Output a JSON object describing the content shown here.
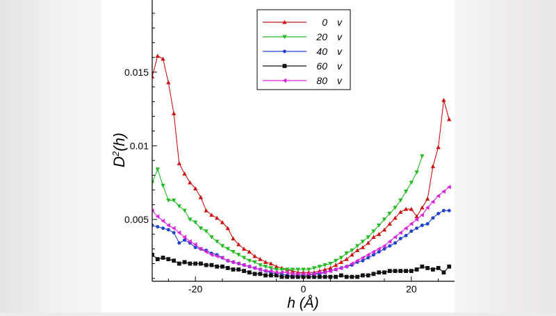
{
  "chart_data": {
    "type": "line",
    "xlabel": "h (Å)",
    "ylabel_main": "D",
    "ylabel_sup": "2",
    "ylabel_rest": "(h)",
    "xlim": [
      -28,
      28
    ],
    "ylim": [
      0.0008,
      0.0199
    ],
    "xticks": [
      -20,
      0,
      20
    ],
    "xtick_labels": [
      "-20",
      "0",
      "20"
    ],
    "yticks": [
      0.005,
      0.01,
      0.015
    ],
    "ytick_labels": [
      "0.005",
      "0.01",
      "0.015"
    ],
    "legend_position": "top-center",
    "grid": false,
    "series": [
      {
        "name": "0 v",
        "color": "#cc1111",
        "marker": "triangle-up",
        "points": [
          [
            -28,
            0.0147
          ],
          [
            -27,
            0.0161
          ],
          [
            -26,
            0.0159
          ],
          [
            -25,
            0.0143
          ],
          [
            -24,
            0.0122
          ],
          [
            -23,
            0.0088
          ],
          [
            -22,
            0.0081
          ],
          [
            -21,
            0.0075
          ],
          [
            -20,
            0.0071
          ],
          [
            -19,
            0.0065
          ],
          [
            -18,
            0.0056
          ],
          [
            -17,
            0.0053
          ],
          [
            -16,
            0.0051
          ],
          [
            -15,
            0.0048
          ],
          [
            -14,
            0.0044
          ],
          [
            -13,
            0.0037
          ],
          [
            -12,
            0.0033
          ],
          [
            -11,
            0.003
          ],
          [
            -10,
            0.0028
          ],
          [
            -9,
            0.0025
          ],
          [
            -8,
            0.0023
          ],
          [
            -7,
            0.0021
          ],
          [
            -6,
            0.002
          ],
          [
            -5,
            0.0018
          ],
          [
            -4,
            0.0017
          ],
          [
            -3,
            0.0016
          ],
          [
            -2,
            0.0015
          ],
          [
            -1,
            0.0014
          ],
          [
            0,
            0.0014
          ],
          [
            1,
            0.0014
          ],
          [
            2,
            0.0014
          ],
          [
            3,
            0.0015
          ],
          [
            4,
            0.0016
          ],
          [
            5,
            0.0017
          ],
          [
            6,
            0.0019
          ],
          [
            7,
            0.0021
          ],
          [
            8,
            0.0023
          ],
          [
            9,
            0.0026
          ],
          [
            10,
            0.0029
          ],
          [
            11,
            0.0031
          ],
          [
            12,
            0.0034
          ],
          [
            13,
            0.0038
          ],
          [
            14,
            0.004
          ],
          [
            15,
            0.0043
          ],
          [
            16,
            0.0047
          ],
          [
            17,
            0.0051
          ],
          [
            18,
            0.0055
          ],
          [
            19,
            0.0057
          ],
          [
            20,
            0.0057
          ],
          [
            21,
            0.0052
          ],
          [
            22,
            0.0058
          ],
          [
            23,
            0.0064
          ],
          [
            24,
            0.0086
          ],
          [
            25,
            0.0099
          ],
          [
            26,
            0.0131
          ],
          [
            27,
            0.0118
          ]
        ]
      },
      {
        "name": "20 v",
        "color": "#22bb22",
        "marker": "triangle-down",
        "points": [
          [
            -28,
            0.0075
          ],
          [
            -27,
            0.0084
          ],
          [
            -26,
            0.0073
          ],
          [
            -25,
            0.0063
          ],
          [
            -24,
            0.0063
          ],
          [
            -23,
            0.0059
          ],
          [
            -22,
            0.0056
          ],
          [
            -21,
            0.005
          ],
          [
            -20,
            0.0048
          ],
          [
            -19,
            0.0044
          ],
          [
            -18,
            0.0042
          ],
          [
            -17,
            0.0038
          ],
          [
            -16,
            0.0035
          ],
          [
            -15,
            0.0032
          ],
          [
            -14,
            0.003
          ],
          [
            -13,
            0.0028
          ],
          [
            -12,
            0.0026
          ],
          [
            -11,
            0.0024
          ],
          [
            -10,
            0.0022
          ],
          [
            -9,
            0.0021
          ],
          [
            -8,
            0.0019
          ],
          [
            -7,
            0.0018
          ],
          [
            -6,
            0.0017
          ],
          [
            -5,
            0.0016
          ],
          [
            -4,
            0.0016
          ],
          [
            -3,
            0.0016
          ],
          [
            -2,
            0.0016
          ],
          [
            -1,
            0.0016
          ],
          [
            0,
            0.0016
          ],
          [
            1,
            0.0016
          ],
          [
            2,
            0.0017
          ],
          [
            3,
            0.0018
          ],
          [
            4,
            0.0019
          ],
          [
            5,
            0.002
          ],
          [
            6,
            0.0022
          ],
          [
            7,
            0.0024
          ],
          [
            8,
            0.0027
          ],
          [
            9,
            0.0029
          ],
          [
            10,
            0.0032
          ],
          [
            11,
            0.0035
          ],
          [
            12,
            0.0038
          ],
          [
            13,
            0.0042
          ],
          [
            14,
            0.0046
          ],
          [
            15,
            0.005
          ],
          [
            16,
            0.0054
          ],
          [
            17,
            0.0058
          ],
          [
            18,
            0.0063
          ],
          [
            19,
            0.0069
          ],
          [
            20,
            0.0075
          ],
          [
            21,
            0.0082
          ],
          [
            22,
            0.0093
          ]
        ]
      },
      {
        "name": "40 v",
        "color": "#2244cc",
        "marker": "circle",
        "points": [
          [
            -28,
            0.0046
          ],
          [
            -27,
            0.0045
          ],
          [
            -26,
            0.0044
          ],
          [
            -25,
            0.0043
          ],
          [
            -24,
            0.0041
          ],
          [
            -23,
            0.0034
          ],
          [
            -22,
            0.0036
          ],
          [
            -21,
            0.0034
          ],
          [
            -20,
            0.0031
          ],
          [
            -19,
            0.003
          ],
          [
            -18,
            0.0029
          ],
          [
            -17,
            0.0027
          ],
          [
            -16,
            0.0026
          ],
          [
            -15,
            0.0024
          ],
          [
            -14,
            0.0022
          ],
          [
            -13,
            0.0021
          ],
          [
            -12,
            0.002
          ],
          [
            -11,
            0.0019
          ],
          [
            -10,
            0.0018
          ],
          [
            -9,
            0.0017
          ],
          [
            -8,
            0.0016
          ],
          [
            -7,
            0.0015
          ],
          [
            -6,
            0.0014
          ],
          [
            -5,
            0.0013
          ],
          [
            -4,
            0.0013
          ],
          [
            -3,
            0.0012
          ],
          [
            -2,
            0.0012
          ],
          [
            -1,
            0.0012
          ],
          [
            0,
            0.0012
          ],
          [
            1,
            0.0012
          ],
          [
            2,
            0.0013
          ],
          [
            3,
            0.0013
          ],
          [
            4,
            0.0014
          ],
          [
            5,
            0.0015
          ],
          [
            6,
            0.0016
          ],
          [
            7,
            0.0017
          ],
          [
            8,
            0.0018
          ],
          [
            9,
            0.0019
          ],
          [
            10,
            0.0021
          ],
          [
            11,
            0.0022
          ],
          [
            12,
            0.0024
          ],
          [
            13,
            0.0026
          ],
          [
            14,
            0.0028
          ],
          [
            15,
            0.003
          ],
          [
            16,
            0.0032
          ],
          [
            17,
            0.0034
          ],
          [
            18,
            0.0037
          ],
          [
            19,
            0.0039
          ],
          [
            20,
            0.0042
          ],
          [
            21,
            0.0044
          ],
          [
            22,
            0.0046
          ],
          [
            23,
            0.0047
          ],
          [
            24,
            0.0051
          ],
          [
            25,
            0.0054
          ],
          [
            26,
            0.0056
          ],
          [
            27,
            0.0056
          ]
        ]
      },
      {
        "name": "60 v",
        "color": "#111111",
        "marker": "square",
        "points": [
          [
            -28,
            0.0026
          ],
          [
            -27,
            0.0023
          ],
          [
            -26,
            0.0024
          ],
          [
            -25,
            0.0023
          ],
          [
            -24,
            0.0022
          ],
          [
            -23,
            0.002
          ],
          [
            -22,
            0.0021
          ],
          [
            -21,
            0.002
          ],
          [
            -20,
            0.002
          ],
          [
            -19,
            0.002
          ],
          [
            -18,
            0.0019
          ],
          [
            -17,
            0.0019
          ],
          [
            -16,
            0.0018
          ],
          [
            -15,
            0.0018
          ],
          [
            -14,
            0.0017
          ],
          [
            -13,
            0.0016
          ],
          [
            -12,
            0.0016
          ],
          [
            -11,
            0.0015
          ],
          [
            -10,
            0.0014
          ],
          [
            -9,
            0.0013
          ],
          [
            -8,
            0.0013
          ],
          [
            -7,
            0.0012
          ],
          [
            -6,
            0.0012
          ],
          [
            -5,
            0.0012
          ],
          [
            -4,
            0.0011
          ],
          [
            -3,
            0.0011
          ],
          [
            -2,
            0.0011
          ],
          [
            -1,
            0.0011
          ],
          [
            0,
            0.0011
          ],
          [
            1,
            0.0011
          ],
          [
            2,
            0.0011
          ],
          [
            3,
            0.0011
          ],
          [
            4,
            0.0011
          ],
          [
            5,
            0.0011
          ],
          [
            6,
            0.0011
          ],
          [
            7,
            0.0012
          ],
          [
            8,
            0.0011
          ],
          [
            9,
            0.0011
          ],
          [
            10,
            0.0011
          ],
          [
            11,
            0.0012
          ],
          [
            12,
            0.0012
          ],
          [
            13,
            0.0013
          ],
          [
            14,
            0.0014
          ],
          [
            15,
            0.0014
          ],
          [
            16,
            0.0015
          ],
          [
            17,
            0.0015
          ],
          [
            18,
            0.0015
          ],
          [
            19,
            0.0015
          ],
          [
            20,
            0.0015
          ],
          [
            21,
            0.0016
          ],
          [
            22,
            0.0018
          ],
          [
            23,
            0.0017
          ],
          [
            24,
            0.0016
          ],
          [
            25,
            0.0017
          ],
          [
            26,
            0.0014
          ],
          [
            27,
            0.0018
          ]
        ]
      },
      {
        "name": "80 v",
        "color": "#dd22dd",
        "marker": "triangle-left",
        "points": [
          [
            -28,
            0.0056
          ],
          [
            -27,
            0.0052
          ],
          [
            -26,
            0.0049
          ],
          [
            -25,
            0.0046
          ],
          [
            -24,
            0.0044
          ],
          [
            -23,
            0.0041
          ],
          [
            -22,
            0.0038
          ],
          [
            -21,
            0.0035
          ],
          [
            -20,
            0.0033
          ],
          [
            -19,
            0.003
          ],
          [
            -18,
            0.0028
          ],
          [
            -17,
            0.0026
          ],
          [
            -16,
            0.0025
          ],
          [
            -15,
            0.0024
          ],
          [
            -14,
            0.0022
          ],
          [
            -13,
            0.0021
          ],
          [
            -12,
            0.002
          ],
          [
            -11,
            0.0019
          ],
          [
            -10,
            0.0018
          ],
          [
            -9,
            0.0017
          ],
          [
            -8,
            0.0016
          ],
          [
            -7,
            0.0015
          ],
          [
            -6,
            0.0015
          ],
          [
            -5,
            0.0014
          ],
          [
            -4,
            0.0014
          ],
          [
            -3,
            0.0014
          ],
          [
            -2,
            0.0013
          ],
          [
            -1,
            0.0013
          ],
          [
            0,
            0.0013
          ],
          [
            1,
            0.0013
          ],
          [
            2,
            0.0013
          ],
          [
            3,
            0.0014
          ],
          [
            4,
            0.0014
          ],
          [
            5,
            0.0015
          ],
          [
            6,
            0.0016
          ],
          [
            7,
            0.0017
          ],
          [
            8,
            0.0018
          ],
          [
            9,
            0.002
          ],
          [
            10,
            0.0022
          ],
          [
            11,
            0.0024
          ],
          [
            12,
            0.0026
          ],
          [
            13,
            0.0028
          ],
          [
            14,
            0.003
          ],
          [
            15,
            0.0032
          ],
          [
            16,
            0.0035
          ],
          [
            17,
            0.0038
          ],
          [
            18,
            0.0041
          ],
          [
            19,
            0.0044
          ],
          [
            20,
            0.0047
          ],
          [
            21,
            0.005
          ],
          [
            22,
            0.0053
          ],
          [
            23,
            0.0058
          ],
          [
            24,
            0.0062
          ],
          [
            25,
            0.0066
          ],
          [
            26,
            0.0069
          ],
          [
            27,
            0.0072
          ]
        ]
      }
    ]
  }
}
